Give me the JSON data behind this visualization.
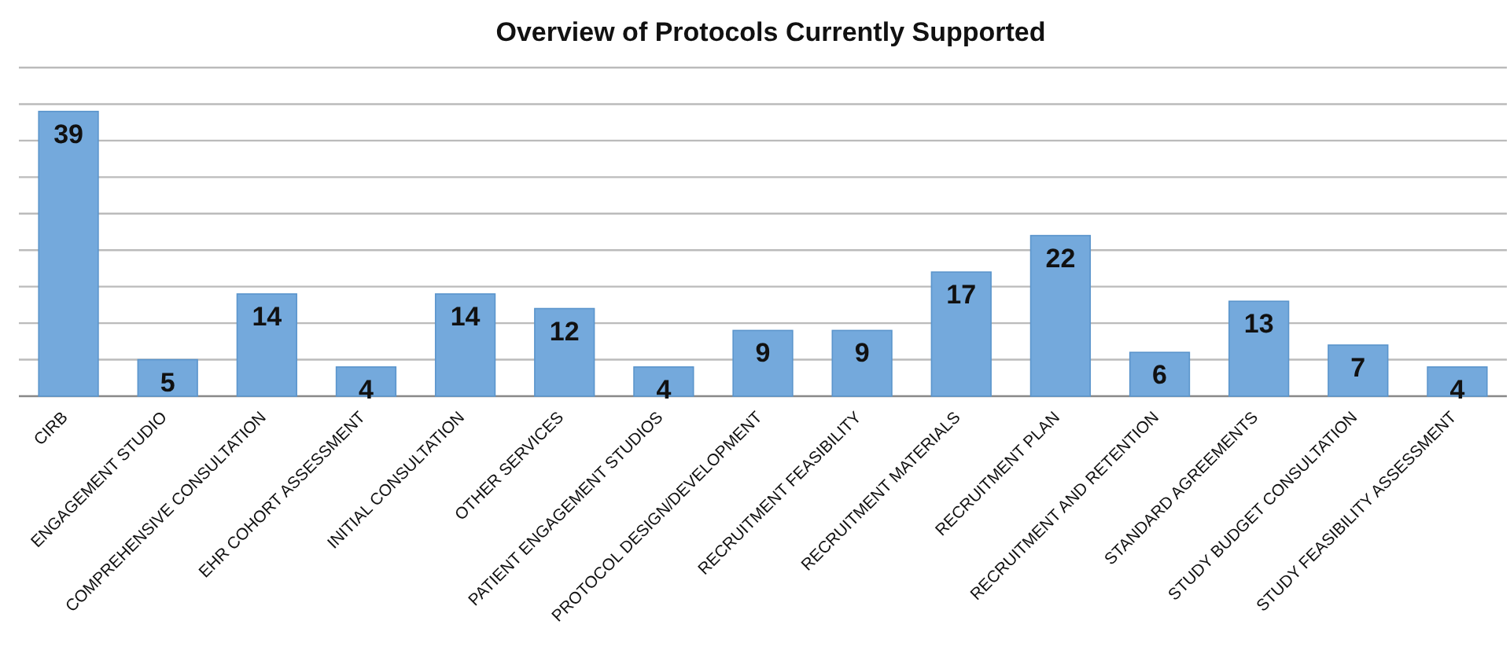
{
  "chart_data": {
    "type": "bar",
    "title": "Overview of Protocols Currently Supported",
    "categories": [
      "CIRB",
      "ENGAGEMENT STUDIO",
      "COMPREHENSIVE CONSULTATION",
      "EHR COHORT ASSESSMENT",
      "INITIAL CONSULTATION",
      "OTHER SERVICES",
      "PATIENT ENGAGEMENT STUDIOS",
      "PROTOCOL DESIGN/DEVELOPMENT",
      "RECRUITMENT FEASIBILITY",
      "RECRUITMENT MATERIALS",
      "RECRUITMENT PLAN",
      "RECRUITMENT AND RETENTION",
      "STANDARD AGREEMENTS",
      "STUDY BUDGET CONSULTATION",
      "STUDY FEASIBILITY ASSESSMENT"
    ],
    "values": [
      39,
      5,
      14,
      4,
      14,
      12,
      4,
      9,
      9,
      17,
      22,
      6,
      13,
      7,
      4
    ],
    "color": "#74a9dc",
    "ylim": [
      0,
      45
    ],
    "yticks": [
      {
        "value": 0,
        "label": null
      },
      {
        "value": 5,
        "label": null
      },
      {
        "value": 10,
        "label": null
      },
      {
        "value": 15,
        "label": null
      },
      {
        "value": 20,
        "label": null
      },
      {
        "value": 25,
        "label": null
      },
      {
        "value": 30,
        "label": null
      },
      {
        "value": 35,
        "label": null
      },
      {
        "value": 40,
        "label": null
      },
      {
        "value": 45,
        "label": null
      }
    ],
    "tick_labels": "x",
    "grid": "y",
    "data_labels": true
  }
}
